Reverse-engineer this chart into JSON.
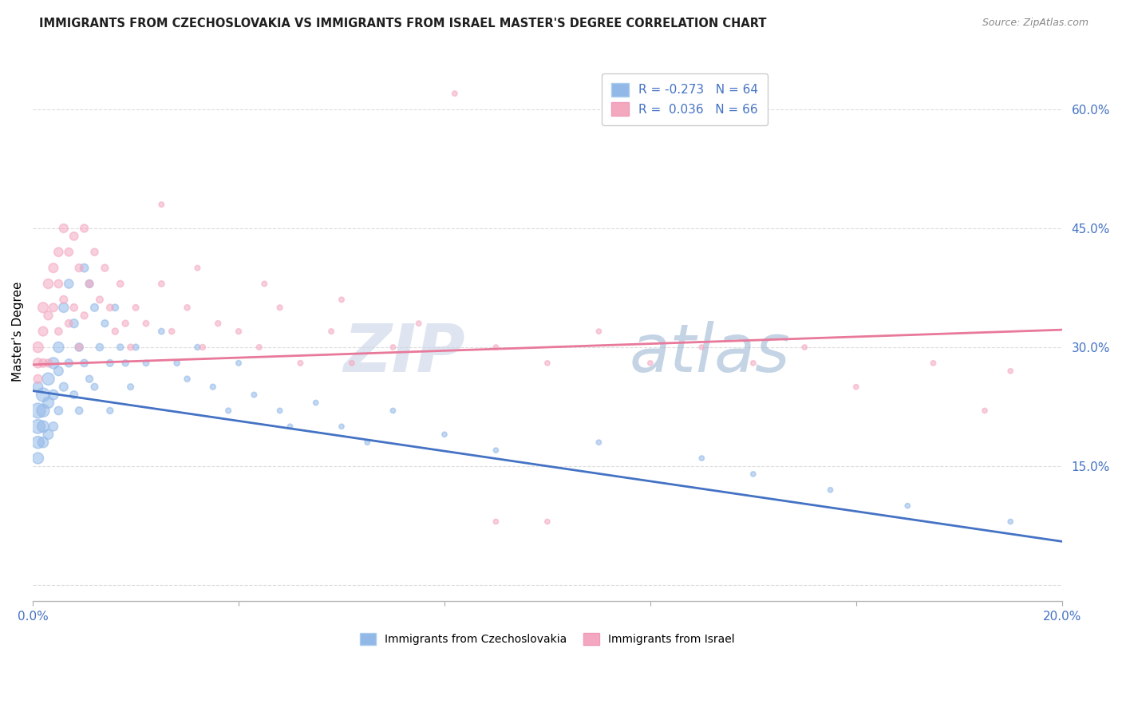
{
  "title": "IMMIGRANTS FROM CZECHOSLOVAKIA VS IMMIGRANTS FROM ISRAEL MASTER'S DEGREE CORRELATION CHART",
  "source": "Source: ZipAtlas.com",
  "ylabel": "Master's Degree",
  "yticks": [
    0.0,
    0.15,
    0.3,
    0.45,
    0.6
  ],
  "ytick_labels": [
    "",
    "15.0%",
    "30.0%",
    "45.0%",
    "60.0%"
  ],
  "xticks": [
    0.0,
    0.04,
    0.08,
    0.12,
    0.16,
    0.2
  ],
  "xtick_labels": [
    "0.0%",
    "",
    "",
    "",
    "",
    "20.0%"
  ],
  "xmin": 0.0,
  "xmax": 0.2,
  "ymin": -0.02,
  "ymax": 0.66,
  "watermark": "ZIPatlas",
  "legend_blue_label": "R = -0.273   N = 64",
  "legend_pink_label": "R =  0.036   N = 66",
  "blue_scatter_color": "#92b8e8",
  "pink_scatter_color": "#f4a8c0",
  "blue_line_color": "#4472c4",
  "pink_line_color": "#e8799a",
  "axis_label_color": "#4472c4",
  "title_color": "#1f1f1f",
  "source_color": "#888888",
  "grid_color": "#dddddd",
  "blue_line_y0": 0.245,
  "blue_line_y1": 0.055,
  "pink_line_y0": 0.278,
  "pink_line_y1": 0.322,
  "blue_x": [
    0.001,
    0.001,
    0.001,
    0.001,
    0.001,
    0.002,
    0.002,
    0.002,
    0.002,
    0.003,
    0.003,
    0.003,
    0.004,
    0.004,
    0.004,
    0.005,
    0.005,
    0.005,
    0.006,
    0.006,
    0.007,
    0.007,
    0.008,
    0.008,
    0.009,
    0.009,
    0.01,
    0.01,
    0.011,
    0.011,
    0.012,
    0.012,
    0.013,
    0.014,
    0.015,
    0.015,
    0.016,
    0.017,
    0.018,
    0.019,
    0.02,
    0.022,
    0.025,
    0.028,
    0.03,
    0.032,
    0.035,
    0.038,
    0.04,
    0.043,
    0.048,
    0.05,
    0.055,
    0.06,
    0.065,
    0.07,
    0.08,
    0.09,
    0.11,
    0.13,
    0.14,
    0.155,
    0.17,
    0.19
  ],
  "blue_y": [
    0.22,
    0.2,
    0.18,
    0.16,
    0.25,
    0.24,
    0.22,
    0.2,
    0.18,
    0.26,
    0.23,
    0.19,
    0.28,
    0.24,
    0.2,
    0.3,
    0.27,
    0.22,
    0.35,
    0.25,
    0.38,
    0.28,
    0.33,
    0.24,
    0.3,
    0.22,
    0.4,
    0.28,
    0.38,
    0.26,
    0.35,
    0.25,
    0.3,
    0.33,
    0.28,
    0.22,
    0.35,
    0.3,
    0.28,
    0.25,
    0.3,
    0.28,
    0.32,
    0.28,
    0.26,
    0.3,
    0.25,
    0.22,
    0.28,
    0.24,
    0.22,
    0.2,
    0.23,
    0.2,
    0.18,
    0.22,
    0.19,
    0.17,
    0.18,
    0.16,
    0.14,
    0.12,
    0.1,
    0.08
  ],
  "blue_size": [
    180,
    160,
    120,
    100,
    80,
    150,
    130,
    110,
    90,
    120,
    100,
    80,
    100,
    80,
    65,
    90,
    70,
    55,
    75,
    60,
    65,
    52,
    60,
    48,
    55,
    44,
    55,
    44,
    50,
    40,
    48,
    38,
    44,
    40,
    38,
    32,
    36,
    33,
    32,
    30,
    30,
    28,
    28,
    26,
    26,
    25,
    24,
    23,
    22,
    22,
    21,
    21,
    20,
    20,
    20,
    20,
    20,
    20,
    20,
    20,
    20,
    20,
    20,
    20
  ],
  "pink_x": [
    0.001,
    0.001,
    0.001,
    0.002,
    0.002,
    0.002,
    0.003,
    0.003,
    0.003,
    0.004,
    0.004,
    0.005,
    0.005,
    0.005,
    0.006,
    0.006,
    0.007,
    0.007,
    0.008,
    0.008,
    0.009,
    0.009,
    0.01,
    0.01,
    0.011,
    0.012,
    0.013,
    0.014,
    0.015,
    0.016,
    0.017,
    0.018,
    0.019,
    0.02,
    0.022,
    0.025,
    0.027,
    0.03,
    0.033,
    0.036,
    0.04,
    0.044,
    0.048,
    0.052,
    0.058,
    0.062,
    0.07,
    0.075,
    0.082,
    0.09,
    0.1,
    0.11,
    0.12,
    0.13,
    0.14,
    0.15,
    0.16,
    0.175,
    0.185,
    0.19,
    0.025,
    0.032,
    0.045,
    0.06,
    0.09,
    0.1
  ],
  "pink_y": [
    0.3,
    0.28,
    0.26,
    0.35,
    0.32,
    0.28,
    0.38,
    0.34,
    0.28,
    0.4,
    0.35,
    0.42,
    0.38,
    0.32,
    0.45,
    0.36,
    0.42,
    0.33,
    0.44,
    0.35,
    0.4,
    0.3,
    0.45,
    0.34,
    0.38,
    0.42,
    0.36,
    0.4,
    0.35,
    0.32,
    0.38,
    0.33,
    0.3,
    0.35,
    0.33,
    0.38,
    0.32,
    0.35,
    0.3,
    0.33,
    0.32,
    0.3,
    0.35,
    0.28,
    0.32,
    0.28,
    0.3,
    0.33,
    0.62,
    0.3,
    0.28,
    0.32,
    0.28,
    0.3,
    0.28,
    0.3,
    0.25,
    0.28,
    0.22,
    0.27,
    0.48,
    0.4,
    0.38,
    0.36,
    0.08,
    0.08
  ],
  "pink_size": [
    90,
    75,
    60,
    85,
    70,
    58,
    75,
    62,
    50,
    70,
    58,
    65,
    55,
    45,
    60,
    50,
    55,
    45,
    55,
    44,
    50,
    40,
    50,
    40,
    44,
    42,
    38,
    40,
    36,
    33,
    35,
    32,
    30,
    30,
    28,
    28,
    26,
    26,
    25,
    25,
    24,
    23,
    23,
    22,
    22,
    22,
    21,
    21,
    21,
    20,
    20,
    20,
    20,
    20,
    20,
    20,
    20,
    20,
    20,
    20,
    22,
    22,
    22,
    22,
    20,
    20
  ]
}
